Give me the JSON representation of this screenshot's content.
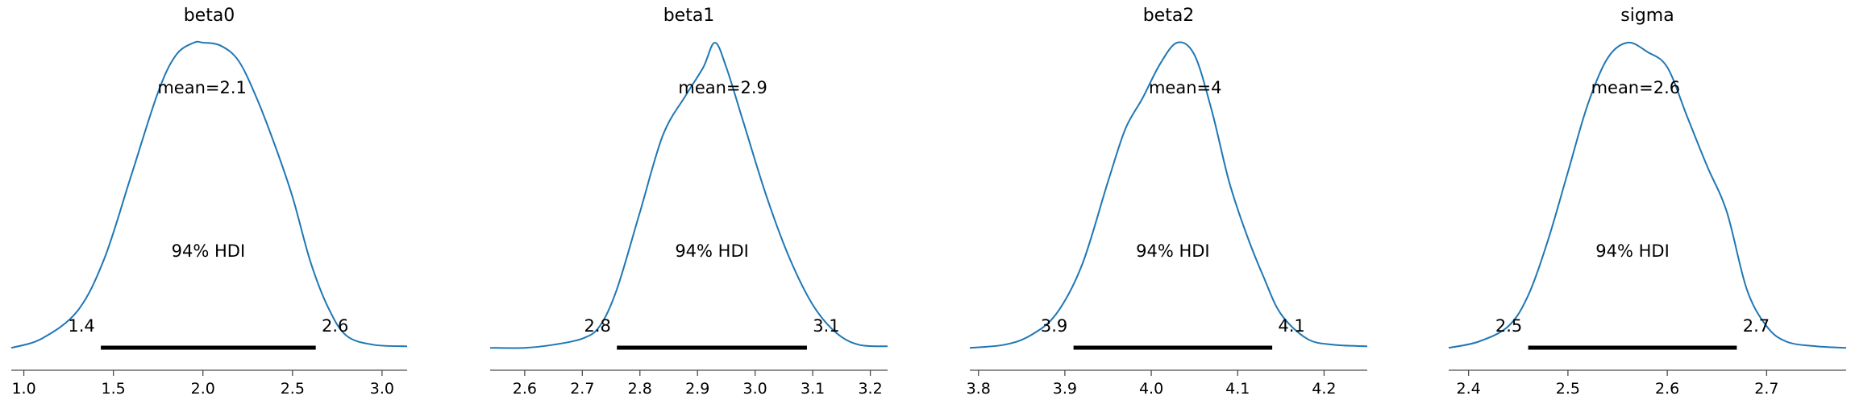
{
  "figure": {
    "line_color": "#1f77b4",
    "hdi_color": "#000000",
    "axis_color": "#4d4d4d",
    "background": "#ffffff"
  },
  "chart_data": [
    {
      "type": "line",
      "title": "beta0",
      "xlabel": "",
      "ylabel": "",
      "xlim": [
        0.93,
        3.14
      ],
      "ticks": [
        1.0,
        1.5,
        2.0,
        2.5,
        3.0
      ],
      "tick_labels": [
        "1.0",
        "1.5",
        "2.0",
        "2.5",
        "3.0"
      ],
      "mean_label": "mean=2.1",
      "hdi_label": "94% HDI",
      "hdi_low": 1.43,
      "hdi_low_label": "1.4",
      "hdi_high": 2.63,
      "hdi_high_label": "2.6",
      "density": {
        "x": [
          0.93,
          1.1,
          1.3,
          1.45,
          1.6,
          1.75,
          1.85,
          1.95,
          2.0,
          2.1,
          2.2,
          2.3,
          2.4,
          2.5,
          2.6,
          2.7,
          2.8,
          2.95,
          3.14
        ],
        "y": [
          0.01,
          0.04,
          0.13,
          0.3,
          0.57,
          0.84,
          0.96,
          1.0,
          1.0,
          0.99,
          0.94,
          0.82,
          0.67,
          0.5,
          0.29,
          0.14,
          0.05,
          0.02,
          0.015
        ]
      }
    },
    {
      "type": "line",
      "title": "beta1",
      "xlabel": "",
      "ylabel": "",
      "xlim": [
        2.54,
        3.23
      ],
      "ticks": [
        2.6,
        2.7,
        2.8,
        2.9,
        3.0,
        3.1,
        3.2
      ],
      "tick_labels": [
        "2.6",
        "2.7",
        "2.8",
        "2.9",
        "3.0",
        "3.1",
        "3.2"
      ],
      "mean_label": "mean=2.9",
      "hdi_label": "94% HDI",
      "hdi_low": 2.76,
      "hdi_low_label": "2.8",
      "hdi_high": 3.09,
      "hdi_high_label": "3.1",
      "density": {
        "x": [
          2.54,
          2.6,
          2.65,
          2.7,
          2.73,
          2.76,
          2.8,
          2.84,
          2.88,
          2.91,
          2.93,
          2.95,
          2.98,
          3.02,
          3.06,
          3.1,
          3.14,
          3.18,
          3.23
        ],
        "y": [
          0.01,
          0.01,
          0.02,
          0.04,
          0.08,
          0.2,
          0.45,
          0.7,
          0.83,
          0.92,
          1.0,
          0.92,
          0.74,
          0.5,
          0.3,
          0.15,
          0.06,
          0.02,
          0.015
        ]
      }
    },
    {
      "type": "line",
      "title": "beta2",
      "xlabel": "",
      "ylabel": "",
      "xlim": [
        3.79,
        4.25
      ],
      "ticks": [
        3.8,
        3.9,
        4.0,
        4.1,
        4.2
      ],
      "tick_labels": [
        "3.8",
        "3.9",
        "4.0",
        "4.1",
        "4.2"
      ],
      "mean_label": "mean=4",
      "hdi_label": "94% HDI",
      "hdi_low": 3.91,
      "hdi_low_label": "3.9",
      "hdi_high": 4.14,
      "hdi_high_label": "4.1",
      "density": {
        "x": [
          3.79,
          3.83,
          3.86,
          3.89,
          3.92,
          3.95,
          3.97,
          3.99,
          4.01,
          4.03,
          4.05,
          4.07,
          4.09,
          4.11,
          4.13,
          4.15,
          4.18,
          4.21,
          4.25
        ],
        "y": [
          0.01,
          0.02,
          0.05,
          0.12,
          0.28,
          0.55,
          0.72,
          0.82,
          0.93,
          1.0,
          0.96,
          0.78,
          0.55,
          0.38,
          0.24,
          0.12,
          0.04,
          0.02,
          0.015
        ]
      }
    },
    {
      "type": "line",
      "title": "sigma",
      "xlabel": "",
      "ylabel": "",
      "xlim": [
        2.38,
        2.78
      ],
      "ticks": [
        2.4,
        2.5,
        2.6,
        2.7
      ],
      "tick_labels": [
        "2.4",
        "2.5",
        "2.6",
        "2.7"
      ],
      "mean_label": "mean=2.6",
      "hdi_label": "94% HDI",
      "hdi_low": 2.46,
      "hdi_low_label": "2.5",
      "hdi_high": 2.67,
      "hdi_high_label": "2.7",
      "density": {
        "x": [
          2.38,
          2.41,
          2.44,
          2.46,
          2.48,
          2.5,
          2.52,
          2.54,
          2.56,
          2.58,
          2.6,
          2.62,
          2.64,
          2.66,
          2.68,
          2.7,
          2.72,
          2.75,
          2.78
        ],
        "y": [
          0.01,
          0.03,
          0.08,
          0.18,
          0.36,
          0.58,
          0.8,
          0.95,
          1.0,
          0.97,
          0.92,
          0.76,
          0.6,
          0.45,
          0.2,
          0.08,
          0.03,
          0.015,
          0.01
        ]
      }
    }
  ]
}
